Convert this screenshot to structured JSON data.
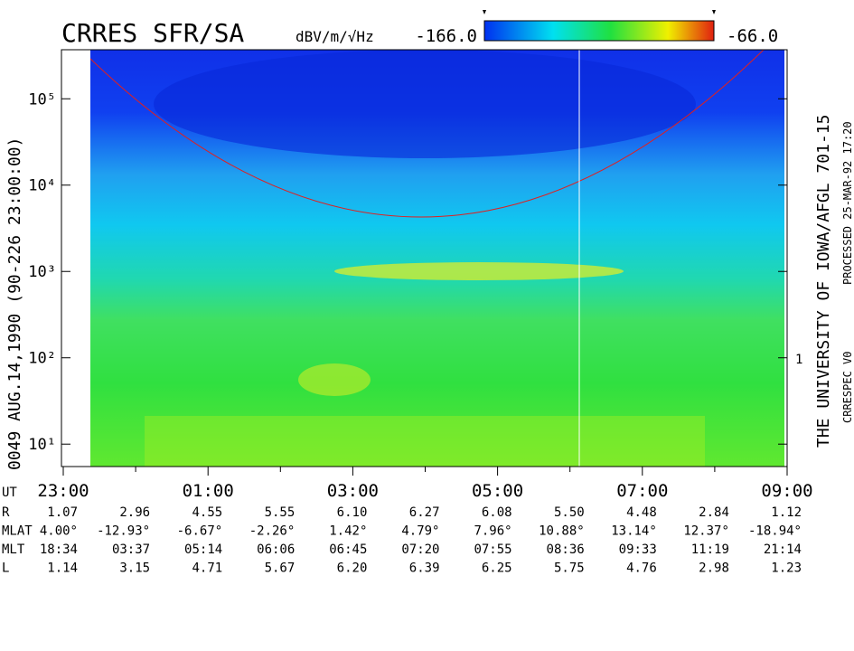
{
  "chart_data": {
    "type": "spectrogram",
    "title": "CRRES SFR/SA",
    "colorbar": {
      "unit_label": "dBV/m/√Hz",
      "ticks": [
        {
          "value": -166,
          "label": "-166.0"
        },
        {
          "value": -66,
          "label": "-66.0"
        }
      ]
    },
    "y_label": "0049   AUG.14,1990   (90-226 23:00:00)",
    "log_y": true,
    "ylim": [
      5.5,
      370000
    ],
    "yticks": [
      {
        "value": 10,
        "label": "10¹"
      },
      {
        "value": 100,
        "label": "10²"
      },
      {
        "value": 1000,
        "label": "10³"
      },
      {
        "value": 10000,
        "label": "10⁴"
      },
      {
        "value": 100000,
        "label": "10⁵"
      }
    ],
    "y2_label": "1",
    "x_categories": [
      "23:00",
      null,
      "01:00",
      null,
      "03:00",
      null,
      "05:00",
      null,
      "07:00",
      null,
      "09:00"
    ],
    "ephemeris": {
      "x_row_label": "UT",
      "rows": [
        {
          "label": "R",
          "values": [
            "1.07",
            "2.96",
            "4.55",
            "5.55",
            "6.10",
            "6.27",
            "6.08",
            "5.50",
            "4.48",
            "2.84",
            "1.12"
          ]
        },
        {
          "label": "MLAT",
          "values": [
            "4.00°",
            "-12.93°",
            "-6.67°",
            "-2.26°",
            "1.42°",
            "4.79°",
            "7.96°",
            "10.88°",
            "13.14°",
            "12.37°",
            "-18.94°"
          ]
        },
        {
          "label": "MLT",
          "values": [
            "18:34",
            "03:37",
            "05:14",
            "06:06",
            "06:45",
            "07:20",
            "07:55",
            "08:36",
            "09:33",
            "11:19",
            "21:14"
          ]
        },
        {
          "label": "L",
          "values": [
            "1.14",
            "3.15",
            "4.71",
            "5.67",
            "6.20",
            "6.39",
            "6.25",
            "5.75",
            "4.76",
            "2.98",
            "1.23"
          ]
        }
      ]
    },
    "side_texts": [
      "THE UNIVERSITY OF IOWA/AFGL 701-15",
      "PROCESSED 25-MAR-92  17:20",
      "CRRESPEC V0"
    ]
  }
}
